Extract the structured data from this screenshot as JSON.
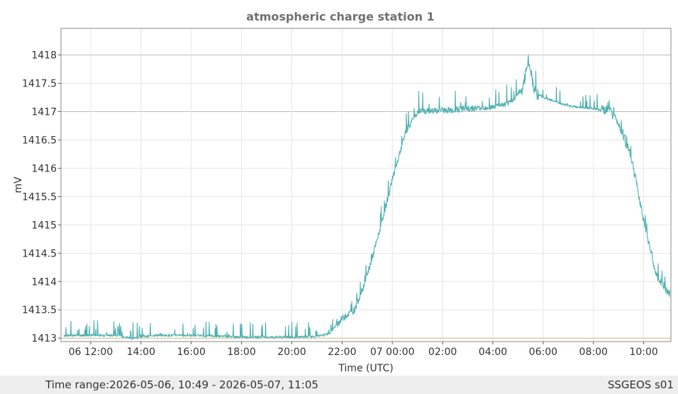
{
  "colors": {
    "series": "#4fb0b0",
    "reference_line": "#cbbf86",
    "grid": "#e6e6e6",
    "major_grid": "#bdbdbd",
    "axis_text": "#333333",
    "title_text": "#707070",
    "footer_bg": "#eeeeee"
  },
  "footer": {
    "time_range_label": "Time range:",
    "time_range_value": "2026-05-06, 10:49 - 2026-05-07, 11:05",
    "station_id": "SSGEOS s01"
  },
  "chart_data": {
    "type": "line",
    "title": "atmospheric charge station 1",
    "xlabel": "Time (UTC)",
    "ylabel": "mV",
    "xlim": [
      "2026-05-06 10:49",
      "2026-05-07 11:05"
    ],
    "ylim": [
      1412.94,
      1418.47
    ],
    "x_tick_labels": [
      "06 12:00",
      "14:00",
      "16:00",
      "18:00",
      "20:00",
      "22:00",
      "07 00:00",
      "02:00",
      "04:00",
      "06:00",
      "08:00",
      "10:00"
    ],
    "y_tick_labels": [
      "1413",
      "1413.5",
      "1414",
      "1414.5",
      "1415",
      "1415.5",
      "1416",
      "1416.5",
      "1417",
      "1417.5",
      "1418"
    ],
    "grid": true,
    "reference_line": 1413.0,
    "series": [
      {
        "x": [
          "2026-05-06 10:49",
          "2026-05-06 12:00",
          "2026-05-06 13:00",
          "2026-05-06 13:40",
          "2026-05-06 14:30",
          "2026-05-06 16:00",
          "2026-05-06 18:00",
          "2026-05-06 20:00",
          "2026-05-06 21:00",
          "2026-05-06 21:30",
          "2026-05-06 22:00",
          "2026-05-06 22:30",
          "2026-05-06 23:00",
          "2026-05-06 23:30",
          "2026-05-07 00:00",
          "2026-05-07 00:30",
          "2026-05-07 01:00",
          "2026-05-07 02:00",
          "2026-05-07 03:00",
          "2026-05-07 04:00",
          "2026-05-07 04:40",
          "2026-05-07 05:10",
          "2026-05-07 05:25",
          "2026-05-07 05:40",
          "2026-05-07 06:00",
          "2026-05-07 07:00",
          "2026-05-07 08:00",
          "2026-05-07 08:40",
          "2026-05-07 09:00",
          "2026-05-07 09:30",
          "2026-05-07 10:00",
          "2026-05-07 10:30",
          "2026-05-07 11:05"
        ],
        "values": [
          1413.05,
          1413.05,
          1413.05,
          1413.0,
          1413.05,
          1413.05,
          1413.02,
          1413.02,
          1413.03,
          1413.08,
          1413.35,
          1413.5,
          1414.1,
          1414.9,
          1415.8,
          1416.6,
          1417.0,
          1417.02,
          1417.05,
          1417.08,
          1417.15,
          1417.4,
          1417.9,
          1417.35,
          1417.25,
          1417.1,
          1417.05,
          1417.0,
          1416.8,
          1416.2,
          1415.1,
          1414.1,
          1413.75
        ]
      }
    ]
  }
}
